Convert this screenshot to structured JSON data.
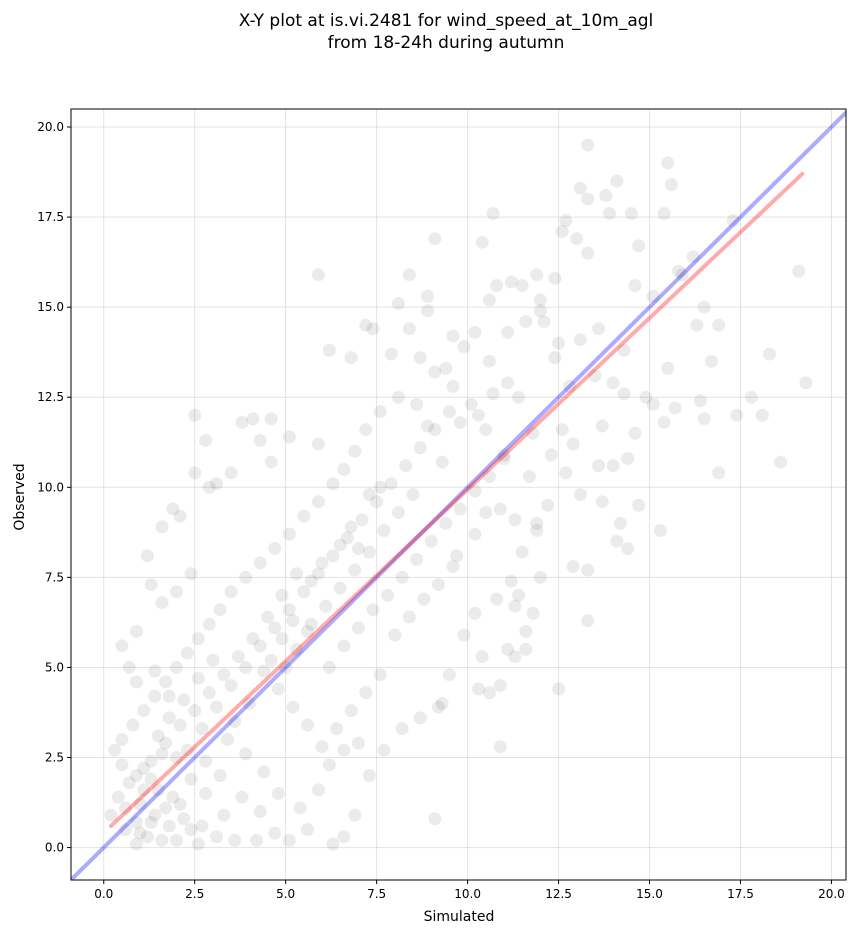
{
  "chart_data": {
    "type": "scatter",
    "title": [
      "X-Y plot at is.vi.2481 for wind_speed_at_10m_agl",
      "from 18-24h during autumn"
    ],
    "xlabel": "Simulated",
    "ylabel": "Observed",
    "xlim": [
      -0.9,
      20.4
    ],
    "ylim": [
      -0.9,
      20.5
    ],
    "xticks": [
      0.0,
      2.5,
      5.0,
      7.5,
      10.0,
      12.5,
      15.0,
      17.5,
      20.0
    ],
    "yticks": [
      0.0,
      2.5,
      5.0,
      7.5,
      10.0,
      12.5,
      15.0,
      17.5,
      20.0
    ],
    "tick_labels": [
      "0.0",
      "2.5",
      "5.0",
      "7.5",
      "10.0",
      "12.5",
      "15.0",
      "17.5",
      "20.0"
    ],
    "grid": true,
    "point_color": "#000000",
    "point_opacity": 0.08,
    "lines": [
      {
        "role": "one-to-one",
        "color": "#0000ff",
        "x": [
          -0.9,
          20.4
        ],
        "y": [
          -0.9,
          20.4
        ]
      },
      {
        "role": "regression",
        "color": "#ff0000",
        "x": [
          0.2,
          19.2
        ],
        "y": [
          0.6,
          18.7
        ]
      }
    ],
    "points": [
      [
        13.3,
        19.5
      ],
      [
        15.5,
        19.0
      ],
      [
        15.6,
        18.4
      ],
      [
        13.1,
        18.3
      ],
      [
        13.3,
        18.0
      ],
      [
        14.1,
        18.5
      ],
      [
        13.8,
        18.1
      ],
      [
        12.7,
        17.4
      ],
      [
        13.9,
        17.6
      ],
      [
        17.3,
        17.4
      ],
      [
        15.4,
        17.6
      ],
      [
        14.5,
        17.6
      ],
      [
        10.7,
        17.6
      ],
      [
        10.4,
        16.8
      ],
      [
        9.1,
        16.9
      ],
      [
        13.0,
        16.9
      ],
      [
        13.3,
        16.5
      ],
      [
        12.6,
        17.1
      ],
      [
        15.8,
        16.0
      ],
      [
        16.2,
        16.4
      ],
      [
        14.7,
        16.7
      ],
      [
        14.6,
        15.6
      ],
      [
        15.1,
        15.3
      ],
      [
        15.9,
        15.9
      ],
      [
        12.4,
        15.8
      ],
      [
        11.9,
        15.9
      ],
      [
        11.5,
        15.6
      ],
      [
        11.2,
        15.7
      ],
      [
        10.8,
        15.6
      ],
      [
        10.6,
        15.2
      ],
      [
        8.4,
        15.9
      ],
      [
        8.9,
        15.3
      ],
      [
        8.9,
        14.9
      ],
      [
        8.1,
        15.1
      ],
      [
        7.2,
        14.5
      ],
      [
        7.4,
        14.4
      ],
      [
        5.9,
        15.9
      ],
      [
        6.2,
        13.8
      ],
      [
        6.8,
        13.6
      ],
      [
        7.9,
        13.7
      ],
      [
        8.4,
        14.4
      ],
      [
        9.6,
        14.2
      ],
      [
        9.9,
        13.9
      ],
      [
        9.4,
        13.3
      ],
      [
        10.2,
        14.3
      ],
      [
        10.6,
        13.5
      ],
      [
        11.1,
        14.3
      ],
      [
        11.6,
        14.6
      ],
      [
        12.0,
        14.9
      ],
      [
        12.5,
        14.0
      ],
      [
        13.1,
        14.1
      ],
      [
        13.6,
        14.4
      ],
      [
        14.3,
        13.8
      ],
      [
        15.5,
        13.3
      ],
      [
        16.3,
        14.5
      ],
      [
        16.5,
        15.0
      ],
      [
        16.7,
        13.5
      ],
      [
        16.9,
        14.5
      ],
      [
        17.4,
        12.0
      ],
      [
        17.8,
        12.5
      ],
      [
        18.1,
        12.0
      ],
      [
        18.3,
        13.7
      ],
      [
        19.1,
        16.0
      ],
      [
        19.3,
        12.9
      ],
      [
        18.6,
        10.7
      ],
      [
        16.9,
        10.4
      ],
      [
        16.5,
        11.9
      ],
      [
        16.4,
        12.4
      ],
      [
        15.4,
        11.8
      ],
      [
        15.1,
        12.3
      ],
      [
        14.6,
        11.5
      ],
      [
        14.4,
        10.8
      ],
      [
        14.0,
        10.6
      ],
      [
        13.7,
        11.7
      ],
      [
        12.9,
        11.2
      ],
      [
        12.7,
        10.4
      ],
      [
        13.1,
        9.8
      ],
      [
        13.6,
        10.6
      ],
      [
        14.2,
        9.0
      ],
      [
        14.1,
        8.5
      ],
      [
        14.4,
        8.3
      ],
      [
        14.7,
        9.5
      ],
      [
        15.3,
        8.8
      ],
      [
        13.3,
        7.7
      ],
      [
        12.9,
        7.8
      ],
      [
        13.3,
        6.3
      ],
      [
        12.5,
        4.4
      ],
      [
        11.6,
        5.5
      ],
      [
        11.3,
        5.3
      ],
      [
        11.6,
        6.0
      ],
      [
        11.8,
        6.5
      ],
      [
        11.3,
        6.7
      ],
      [
        11.1,
        5.5
      ],
      [
        10.4,
        5.3
      ],
      [
        10.6,
        4.3
      ],
      [
        10.9,
        4.5
      ],
      [
        10.3,
        4.4
      ],
      [
        10.9,
        2.8
      ],
      [
        9.1,
        0.8
      ],
      [
        9.2,
        3.9
      ],
      [
        9.5,
        4.8
      ],
      [
        9.9,
        5.9
      ],
      [
        10.2,
        6.5
      ],
      [
        10.8,
        6.9
      ],
      [
        11.2,
        7.4
      ],
      [
        11.5,
        8.2
      ],
      [
        11.9,
        8.8
      ],
      [
        12.2,
        9.5
      ],
      [
        11.7,
        10.3
      ],
      [
        11.0,
        10.9
      ],
      [
        10.5,
        11.6
      ],
      [
        10.1,
        12.3
      ],
      [
        9.6,
        12.8
      ],
      [
        9.1,
        13.2
      ],
      [
        8.7,
        13.6
      ],
      [
        8.1,
        12.5
      ],
      [
        7.6,
        12.1
      ],
      [
        7.2,
        11.6
      ],
      [
        6.9,
        11.0
      ],
      [
        6.6,
        10.5
      ],
      [
        6.3,
        10.1
      ],
      [
        5.9,
        9.6
      ],
      [
        5.5,
        9.2
      ],
      [
        5.1,
        8.7
      ],
      [
        4.7,
        8.3
      ],
      [
        4.3,
        7.9
      ],
      [
        3.9,
        7.5
      ],
      [
        3.5,
        7.1
      ],
      [
        3.2,
        6.6
      ],
      [
        2.9,
        6.2
      ],
      [
        2.6,
        5.8
      ],
      [
        2.3,
        5.4
      ],
      [
        2.0,
        5.0
      ],
      [
        1.7,
        4.6
      ],
      [
        1.4,
        4.2
      ],
      [
        1.1,
        3.8
      ],
      [
        0.8,
        3.4
      ],
      [
        0.5,
        3.0
      ],
      [
        2.5,
        12.0
      ],
      [
        3.8,
        11.8
      ],
      [
        4.1,
        11.9
      ],
      [
        4.6,
        11.9
      ],
      [
        5.1,
        11.4
      ],
      [
        5.9,
        11.2
      ],
      [
        4.3,
        11.3
      ],
      [
        4.6,
        10.7
      ],
      [
        3.5,
        10.4
      ],
      [
        3.1,
        10.1
      ],
      [
        2.8,
        11.3
      ],
      [
        2.9,
        10.0
      ],
      [
        2.5,
        10.4
      ],
      [
        2.1,
        9.2
      ],
      [
        1.9,
        9.4
      ],
      [
        1.6,
        8.9
      ],
      [
        1.2,
        8.1
      ],
      [
        1.3,
        7.3
      ],
      [
        1.6,
        6.8
      ],
      [
        2.0,
        7.1
      ],
      [
        2.4,
        7.6
      ],
      [
        0.9,
        6.0
      ],
      [
        0.7,
        5.0
      ],
      [
        0.5,
        5.6
      ],
      [
        0.9,
        4.6
      ],
      [
        1.4,
        4.9
      ],
      [
        1.8,
        4.2
      ],
      [
        0.3,
        2.7
      ],
      [
        0.5,
        2.3
      ],
      [
        0.4,
        1.4
      ],
      [
        0.2,
        0.9
      ],
      [
        0.6,
        0.5
      ],
      [
        0.9,
        0.1
      ],
      [
        1.2,
        0.3
      ],
      [
        1.6,
        0.2
      ],
      [
        2.0,
        0.2
      ],
      [
        2.6,
        0.1
      ],
      [
        3.1,
        0.3
      ],
      [
        3.6,
        0.2
      ],
      [
        4.2,
        0.2
      ],
      [
        4.7,
        0.4
      ],
      [
        5.1,
        0.2
      ],
      [
        5.6,
        0.5
      ],
      [
        6.3,
        0.1
      ],
      [
        6.6,
        0.3
      ],
      [
        6.9,
        0.9
      ],
      [
        7.3,
        2.0
      ],
      [
        7.0,
        2.9
      ],
      [
        7.7,
        2.7
      ],
      [
        8.2,
        3.3
      ],
      [
        8.7,
        3.6
      ],
      [
        9.3,
        4.0
      ],
      [
        5.4,
        1.1
      ],
      [
        5.9,
        1.6
      ],
      [
        6.2,
        2.3
      ],
      [
        6.6,
        2.7
      ],
      [
        4.8,
        1.5
      ],
      [
        4.4,
        2.1
      ],
      [
        3.9,
        2.6
      ],
      [
        3.4,
        3.0
      ],
      [
        2.8,
        1.5
      ],
      [
        2.4,
        1.9
      ],
      [
        2.0,
        2.5
      ],
      [
        1.5,
        3.1
      ],
      [
        1.0,
        1.2
      ],
      [
        1.3,
        0.7
      ],
      [
        1.7,
        1.1
      ],
      [
        2.2,
        0.8
      ],
      [
        2.7,
        0.6
      ],
      [
        3.3,
        0.9
      ],
      [
        3.8,
        1.4
      ],
      [
        4.3,
        1.0
      ],
      [
        0.7,
        1.8
      ],
      [
        1.1,
        2.2
      ],
      [
        1.5,
        1.6
      ],
      [
        1.9,
        1.4
      ],
      [
        2.3,
        2.7
      ],
      [
        2.7,
        3.3
      ],
      [
        3.1,
        3.9
      ],
      [
        3.5,
        4.5
      ],
      [
        3.9,
        5.0
      ],
      [
        4.3,
        5.6
      ],
      [
        4.7,
        6.1
      ],
      [
        5.1,
        6.6
      ],
      [
        5.5,
        7.1
      ],
      [
        5.9,
        7.6
      ],
      [
        6.3,
        8.1
      ],
      [
        6.7,
        8.6
      ],
      [
        7.1,
        9.1
      ],
      [
        7.5,
        9.6
      ],
      [
        7.9,
        10.1
      ],
      [
        8.3,
        10.6
      ],
      [
        8.7,
        11.1
      ],
      [
        9.1,
        11.6
      ],
      [
        9.5,
        12.1
      ],
      [
        6.5,
        8.4
      ],
      [
        6.8,
        8.9
      ],
      [
        7.0,
        8.3
      ],
      [
        7.3,
        9.8
      ],
      [
        7.6,
        10.0
      ],
      [
        6.0,
        7.9
      ],
      [
        5.7,
        7.4
      ],
      [
        5.3,
        7.6
      ],
      [
        4.9,
        7.0
      ],
      [
        4.5,
        6.4
      ],
      [
        4.1,
        5.8
      ],
      [
        3.7,
        5.3
      ],
      [
        3.3,
        4.8
      ],
      [
        2.9,
        4.3
      ],
      [
        2.5,
        3.8
      ],
      [
        2.1,
        3.4
      ],
      [
        1.7,
        2.9
      ],
      [
        1.3,
        2.4
      ],
      [
        0.9,
        2.0
      ],
      [
        6.2,
        5.0
      ],
      [
        6.6,
        5.6
      ],
      [
        7.0,
        6.1
      ],
      [
        7.4,
        6.6
      ],
      [
        7.8,
        7.0
      ],
      [
        8.2,
        7.5
      ],
      [
        8.6,
        8.0
      ],
      [
        9.0,
        8.5
      ],
      [
        9.4,
        9.0
      ],
      [
        9.8,
        9.4
      ],
      [
        10.2,
        9.9
      ],
      [
        10.6,
        10.3
      ],
      [
        11.0,
        10.8
      ],
      [
        8.0,
        5.9
      ],
      [
        8.4,
        6.4
      ],
      [
        8.8,
        6.9
      ],
      [
        9.2,
        7.3
      ],
      [
        9.6,
        7.8
      ],
      [
        7.6,
        4.8
      ],
      [
        7.2,
        4.3
      ],
      [
        6.8,
        3.8
      ],
      [
        6.4,
        3.3
      ],
      [
        6.0,
        2.8
      ],
      [
        5.6,
        3.4
      ],
      [
        5.2,
        3.9
      ],
      [
        4.8,
        4.4
      ],
      [
        4.4,
        4.9
      ],
      [
        4.0,
        4.0
      ],
      [
        3.6,
        3.5
      ],
      [
        3.2,
        2.0
      ],
      [
        2.8,
        2.4
      ],
      [
        5.0,
        5.0
      ],
      [
        5.3,
        5.5
      ],
      [
        5.6,
        6.0
      ],
      [
        4.6,
        5.2
      ],
      [
        4.9,
        5.8
      ],
      [
        5.2,
        6.3
      ],
      [
        3.0,
        5.2
      ],
      [
        2.6,
        4.7
      ],
      [
        2.2,
        4.1
      ],
      [
        1.8,
        3.6
      ],
      [
        1.4,
        0.9
      ],
      [
        1.8,
        0.6
      ],
      [
        2.1,
        1.2
      ],
      [
        0.9,
        0.7
      ],
      [
        1.1,
        1.6
      ],
      [
        1.3,
        1.9
      ],
      [
        1.6,
        2.6
      ],
      [
        2.4,
        0.5
      ],
      [
        0.6,
        1.1
      ],
      [
        1.0,
        0.4
      ],
      [
        9.8,
        11.8
      ],
      [
        10.3,
        12.0
      ],
      [
        10.7,
        12.6
      ],
      [
        11.1,
        12.9
      ],
      [
        8.6,
        12.3
      ],
      [
        8.9,
        11.7
      ],
      [
        9.3,
        10.7
      ],
      [
        8.5,
        9.8
      ],
      [
        8.1,
        9.3
      ],
      [
        7.7,
        8.8
      ],
      [
        7.3,
        8.2
      ],
      [
        6.9,
        7.7
      ],
      [
        6.5,
        7.2
      ],
      [
        6.1,
        6.7
      ],
      [
        5.7,
        6.2
      ],
      [
        12.0,
        15.2
      ],
      [
        12.1,
        14.6
      ],
      [
        12.4,
        13.6
      ],
      [
        12.8,
        12.8
      ],
      [
        13.5,
        13.1
      ],
      [
        14.0,
        12.9
      ],
      [
        14.3,
        12.6
      ],
      [
        14.9,
        12.5
      ],
      [
        15.7,
        12.2
      ],
      [
        11.4,
        12.5
      ],
      [
        11.8,
        11.5
      ],
      [
        12.3,
        10.9
      ],
      [
        12.6,
        11.6
      ],
      [
        10.9,
        9.4
      ],
      [
        11.3,
        9.1
      ],
      [
        10.2,
        8.7
      ],
      [
        10.5,
        9.3
      ],
      [
        9.7,
        8.1
      ],
      [
        11.9,
        9.0
      ],
      [
        13.7,
        9.6
      ],
      [
        12.0,
        7.5
      ],
      [
        11.4,
        7.0
      ]
    ]
  }
}
